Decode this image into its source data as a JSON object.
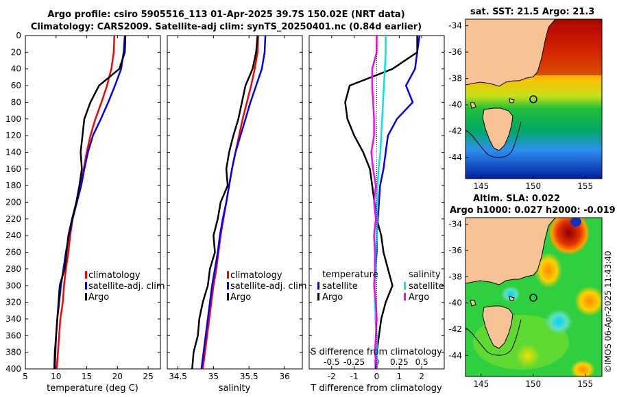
{
  "header": {
    "title_line1": "Argo profile: csiro 5905516_113 01-Apr-2025 39.7S 150.02E (NRT data)",
    "title_line2": "Climatology: CARS2009. Satellite-adj clim: synTS_20250401.nc (0.84d earlier)"
  },
  "maps": {
    "sst_title": "sat. SST: 21.5 Argo: 21.3",
    "sla_title_line1": "Altim. SLA: 0.022",
    "sla_title_line2": "Argo h1000: 0.027 h2000: -0.019",
    "lat_ticks": [
      -34,
      -36,
      -38,
      -40,
      -42,
      -44
    ],
    "lon_ticks": [
      145,
      150,
      155
    ],
    "argo_position": {
      "lat": -39.7,
      "lon": 150.02
    }
  },
  "credit": "©IMOS 06-Apr-2025 11:43:40",
  "colors": {
    "climatology": "#ff0000",
    "satellite": "#0000ff",
    "argo": "#000000",
    "s_satellite": "#00e5e5",
    "s_argo": "#ff00ff",
    "land": "#f7c395"
  },
  "chart_data": [
    {
      "type": "line",
      "name": "temperature",
      "xlabel": "temperature (deg C)",
      "ylabel": "",
      "xlim": [
        5,
        27
      ],
      "ylim": [
        400,
        0
      ],
      "xticks": [
        5,
        10,
        15,
        20,
        25
      ],
      "yticks": [
        0,
        20,
        40,
        60,
        80,
        100,
        120,
        140,
        160,
        180,
        200,
        220,
        240,
        260,
        280,
        300,
        320,
        340,
        360,
        380,
        400
      ],
      "legend": [
        "climatology",
        "satellite-adj. clim",
        "Argo"
      ],
      "series": [
        {
          "name": "climatology",
          "color": "#ff0000",
          "x": [
            19.5,
            19.4,
            19.0,
            18.3,
            17.4,
            16.4,
            15.6,
            15.0,
            14.5,
            14.0,
            13.3,
            12.7,
            12.3,
            12.0,
            11.6,
            11.3,
            11.1,
            10.7,
            10.5,
            10.3,
            10.1
          ],
          "y": [
            0,
            20,
            40,
            60,
            80,
            100,
            120,
            140,
            160,
            180,
            200,
            220,
            240,
            260,
            280,
            300,
            320,
            340,
            360,
            380,
            400
          ]
        },
        {
          "name": "satellite-adj. clim",
          "color": "#0000ff",
          "x": [
            21.2,
            21.0,
            20.6,
            19.6,
            18.5,
            17.3,
            16.0,
            15.2,
            14.6,
            14.1,
            13.4,
            12.7,
            12.1,
            11.6,
            11.2,
            10.8,
            10.5,
            10.2,
            10.0,
            9.9,
            9.8
          ],
          "y": [
            0,
            20,
            40,
            60,
            80,
            100,
            120,
            140,
            160,
            180,
            200,
            220,
            240,
            260,
            280,
            300,
            320,
            340,
            360,
            380,
            400
          ]
        },
        {
          "name": "Argo",
          "color": "#000000",
          "x": [
            21.3,
            21.2,
            20.3,
            17.0,
            15.6,
            14.6,
            14.3,
            14.0,
            14.2,
            13.8,
            13.3,
            12.6,
            12.0,
            11.7,
            11.4,
            10.6,
            10.4,
            10.2,
            10.0,
            9.8,
            9.7
          ],
          "y": [
            0,
            20,
            40,
            60,
            80,
            100,
            120,
            140,
            160,
            180,
            200,
            220,
            240,
            260,
            280,
            300,
            320,
            340,
            360,
            380,
            400
          ]
        }
      ]
    },
    {
      "type": "line",
      "name": "salinity",
      "xlabel": "salinity",
      "ylabel": "",
      "xlim": [
        34.35,
        36.25
      ],
      "ylim": [
        400,
        0
      ],
      "xticks": [
        34.5,
        35,
        35.5,
        36
      ],
      "yticks": [
        0,
        20,
        40,
        60,
        80,
        100,
        120,
        140,
        160,
        180,
        200,
        220,
        240,
        260,
        280,
        300,
        320,
        340,
        360,
        380,
        400
      ],
      "legend": [
        "climatology",
        "satellite-adj. clim",
        "Argo"
      ],
      "series": [
        {
          "name": "climatology",
          "color": "#ff0000",
          "x": [
            35.63,
            35.62,
            35.58,
            35.53,
            35.47,
            35.41,
            35.36,
            35.31,
            35.26,
            35.22,
            35.18,
            35.14,
            35.1,
            35.07,
            35.04,
            35.0,
            34.97,
            34.94,
            34.91,
            34.88,
            34.85
          ],
          "y": [
            0,
            20,
            40,
            60,
            80,
            100,
            120,
            140,
            160,
            180,
            200,
            220,
            240,
            260,
            280,
            300,
            320,
            340,
            360,
            380,
            400
          ]
        },
        {
          "name": "satellite-adj. clim",
          "color": "#0000ff",
          "x": [
            35.73,
            35.72,
            35.68,
            35.6,
            35.52,
            35.45,
            35.38,
            35.31,
            35.26,
            35.22,
            35.18,
            35.13,
            35.09,
            35.06,
            35.02,
            34.98,
            34.95,
            34.92,
            34.89,
            34.86,
            34.83
          ],
          "y": [
            0,
            20,
            40,
            60,
            80,
            100,
            120,
            140,
            160,
            180,
            200,
            220,
            240,
            260,
            280,
            300,
            320,
            340,
            360,
            380,
            400
          ]
        },
        {
          "name": "Argo",
          "color": "#000000",
          "x": [
            35.62,
            35.6,
            35.55,
            35.45,
            35.4,
            35.35,
            35.28,
            35.22,
            35.18,
            35.2,
            35.1,
            35.06,
            35.0,
            35.02,
            34.95,
            34.92,
            34.85,
            34.8,
            34.78,
            34.72,
            34.7
          ],
          "y": [
            0,
            20,
            40,
            60,
            80,
            100,
            120,
            140,
            160,
            180,
            200,
            220,
            240,
            260,
            280,
            300,
            320,
            340,
            360,
            380,
            400
          ]
        }
      ]
    },
    {
      "type": "line",
      "name": "difference",
      "xlabel": "T difference from climatology",
      "x2label": "S difference from climatology",
      "xlim": [
        -3,
        3
      ],
      "x2lim": [
        -0.75,
        0.75
      ],
      "ylim": [
        400,
        0
      ],
      "xticks": [
        -2,
        -1,
        0,
        1,
        2
      ],
      "x2ticks": [
        -0.5,
        -0.25,
        0,
        0.25,
        0.5
      ],
      "yticks": [
        0,
        20,
        40,
        60,
        80,
        100,
        120,
        140,
        160,
        180,
        200,
        220,
        240,
        260,
        280,
        300,
        320,
        340,
        360,
        380,
        400
      ],
      "legend_temperature_header": "temperature",
      "legend_salinity_header": "salinity",
      "legend": [
        "satellite",
        "Argo",
        "satellite",
        "Argo"
      ],
      "series": [
        {
          "name": "T satellite",
          "color": "#0000ff",
          "axis": "T",
          "x": [
            1.9,
            1.8,
            1.7,
            1.3,
            1.6,
            0.9,
            0.5,
            0.4,
            0.3,
            0.15,
            0.1,
            0.05,
            0.0,
            0.0,
            -0.05,
            -0.1,
            -0.05,
            -0.05,
            0.0,
            -0.05,
            -0.05
          ],
          "y": [
            0,
            20,
            40,
            60,
            80,
            100,
            120,
            140,
            160,
            180,
            200,
            220,
            240,
            260,
            280,
            300,
            320,
            340,
            360,
            380,
            400
          ]
        },
        {
          "name": "T Argo",
          "color": "#000000",
          "axis": "T",
          "x": [
            1.8,
            1.8,
            0.7,
            -1.2,
            -1.4,
            -1.3,
            -1.0,
            -0.6,
            -0.3,
            -0.2,
            -0.1,
            0.0,
            0.2,
            0.3,
            0.5,
            0.7,
            0.4,
            0.2,
            0.1,
            0.0,
            0.0
          ],
          "y": [
            0,
            20,
            40,
            60,
            80,
            100,
            120,
            140,
            160,
            180,
            200,
            220,
            240,
            260,
            280,
            300,
            320,
            340,
            360,
            380,
            400
          ]
        },
        {
          "name": "S satellite",
          "color": "#00e5e5",
          "axis": "S",
          "x": [
            0.1,
            0.1,
            0.09,
            0.08,
            0.07,
            0.06,
            0.05,
            0.04,
            0.02,
            0.01,
            0.0,
            0.0,
            0.0,
            -0.01,
            -0.01,
            -0.02,
            -0.02,
            -0.01,
            0.0,
            0.0,
            0.0
          ],
          "y": [
            0,
            20,
            40,
            60,
            80,
            100,
            120,
            140,
            160,
            180,
            200,
            220,
            240,
            260,
            280,
            300,
            320,
            340,
            360,
            380,
            400
          ]
        },
        {
          "name": "S Argo",
          "color": "#ff00ff",
          "axis": "S",
          "x": [
            0.0,
            0.0,
            -0.05,
            -0.05,
            -0.04,
            -0.03,
            -0.03,
            -0.06,
            -0.04,
            -0.01,
            -0.03,
            -0.01,
            -0.03,
            -0.02,
            -0.02,
            -0.03,
            -0.01,
            0.0,
            -0.01,
            -0.02,
            0.0
          ],
          "y": [
            0,
            20,
            40,
            60,
            80,
            100,
            120,
            140,
            160,
            180,
            200,
            220,
            240,
            260,
            280,
            300,
            320,
            340,
            360,
            380,
            400
          ]
        }
      ]
    }
  ]
}
